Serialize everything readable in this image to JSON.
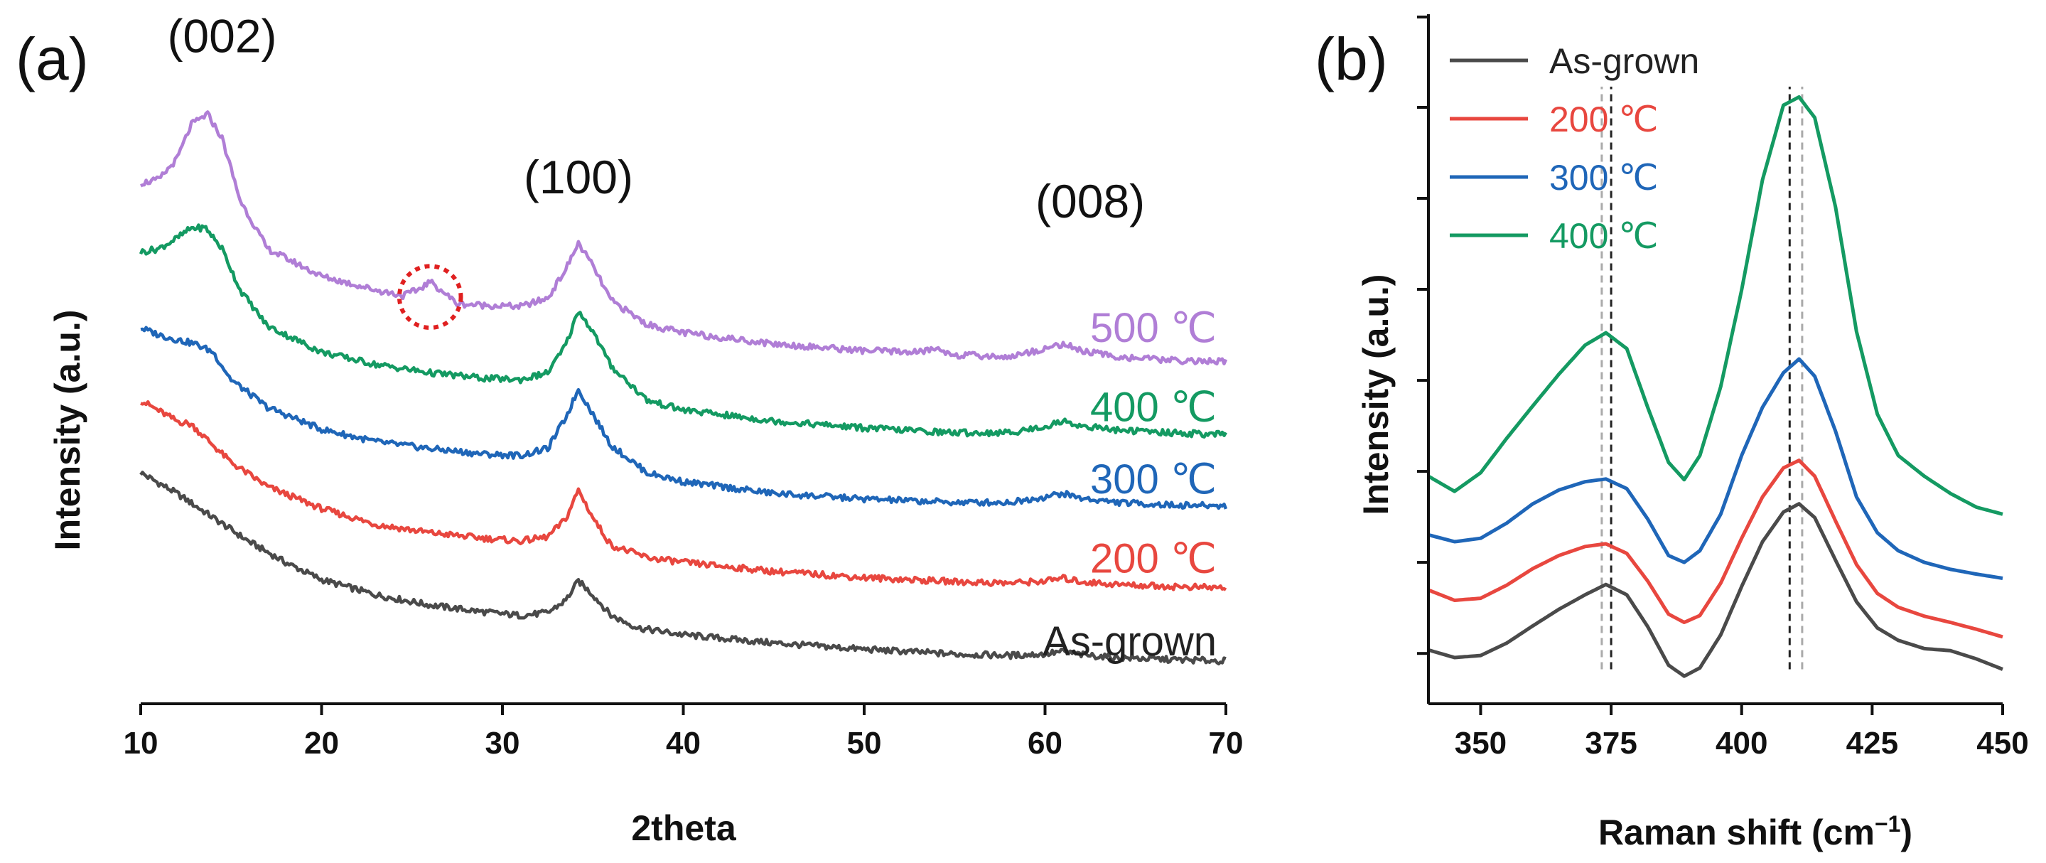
{
  "chart_data": [
    {
      "id": "a",
      "type": "line",
      "panel_label": "(a)",
      "xlabel": "2theta",
      "ylabel": "Intensity (a.u.)",
      "xlim": [
        10,
        70
      ],
      "ylim": [
        0,
        1
      ],
      "xticks": [
        10,
        20,
        30,
        40,
        50,
        60,
        70
      ],
      "peak_annotations": [
        {
          "text": "(002)",
          "x": 14.5,
          "y": 0.945
        },
        {
          "text": "(100)",
          "x": 34.2,
          "y": 0.74
        },
        {
          "text": "(008)",
          "x": 62.5,
          "y": 0.705
        }
      ],
      "circle_annotation": {
        "x": 26.0,
        "y": 0.59,
        "r_x": 1.7
      },
      "series": [
        {
          "name": "As-grown",
          "label": "As-grown",
          "color": "#4a4a4a",
          "x": [
            10,
            12,
            14,
            16,
            18,
            20,
            23,
            26,
            29,
            31,
            32.5,
            33.5,
            34.2,
            35,
            36,
            37.5,
            40,
            45,
            50,
            55,
            58,
            60,
            61,
            62,
            64,
            67,
            70
          ],
          "y": [
            0.335,
            0.305,
            0.27,
            0.235,
            0.205,
            0.18,
            0.158,
            0.143,
            0.133,
            0.128,
            0.132,
            0.15,
            0.178,
            0.158,
            0.128,
            0.11,
            0.1,
            0.088,
            0.079,
            0.072,
            0.07,
            0.072,
            0.076,
            0.071,
            0.067,
            0.064,
            0.062
          ]
        },
        {
          "name": "200 ℃",
          "label": "200 ℃",
          "color": "#e8473f",
          "x": [
            10,
            11,
            12,
            12.8,
            13.6,
            15,
            17,
            20,
            23,
            26,
            29,
            31,
            32.5,
            33.5,
            34.2,
            35,
            36,
            38,
            40,
            45,
            50,
            55,
            58,
            60,
            61,
            62,
            64,
            67,
            70
          ],
          "y": [
            0.44,
            0.425,
            0.41,
            0.405,
            0.385,
            0.35,
            0.315,
            0.283,
            0.26,
            0.248,
            0.24,
            0.236,
            0.242,
            0.268,
            0.31,
            0.27,
            0.23,
            0.212,
            0.205,
            0.192,
            0.183,
            0.177,
            0.175,
            0.178,
            0.182,
            0.177,
            0.173,
            0.17,
            0.168
          ]
        },
        {
          "name": "300 ℃",
          "label": "300 ℃",
          "color": "#1f66b8",
          "x": [
            10,
            11,
            12,
            13,
            14,
            15,
            17,
            20,
            23,
            26,
            29,
            31,
            32.5,
            33.5,
            34.2,
            35,
            36,
            38,
            40,
            45,
            50,
            55,
            58,
            60,
            61,
            62,
            64,
            67,
            70
          ],
          "y": [
            0.545,
            0.535,
            0.528,
            0.522,
            0.51,
            0.47,
            0.43,
            0.398,
            0.38,
            0.37,
            0.362,
            0.36,
            0.37,
            0.415,
            0.456,
            0.42,
            0.375,
            0.335,
            0.322,
            0.305,
            0.297,
            0.292,
            0.292,
            0.3,
            0.305,
            0.298,
            0.292,
            0.288,
            0.287
          ]
        },
        {
          "name": "400 ℃",
          "label": "400 ℃",
          "color": "#149a62",
          "x": [
            10,
            11,
            12,
            12.8,
            13.6,
            14.5,
            15.5,
            17,
            20,
            23,
            26,
            29,
            31,
            32.5,
            33.5,
            34.2,
            35,
            36,
            38,
            40,
            45,
            50,
            55,
            58,
            60,
            61,
            62,
            64,
            67,
            70
          ],
          "y": [
            0.655,
            0.66,
            0.675,
            0.69,
            0.69,
            0.66,
            0.6,
            0.548,
            0.51,
            0.492,
            0.48,
            0.472,
            0.47,
            0.48,
            0.52,
            0.57,
            0.54,
            0.49,
            0.44,
            0.426,
            0.41,
            0.4,
            0.393,
            0.393,
            0.402,
            0.41,
            0.403,
            0.397,
            0.393,
            0.39
          ]
        },
        {
          "name": "500 ℃",
          "label": "500 ℃",
          "color": "#b07ed6",
          "x": [
            10,
            11,
            12,
            12.8,
            13.7,
            14.5,
            15.5,
            17,
            20,
            23,
            24.5,
            25.3,
            26,
            26.7,
            27.5,
            29,
            31,
            32.5,
            33.5,
            34.2,
            35,
            36,
            38,
            40,
            45,
            50,
            53,
            54,
            55,
            58,
            60,
            61,
            62,
            64,
            67,
            70
          ],
          "y": [
            0.755,
            0.76,
            0.79,
            0.84,
            0.855,
            0.82,
            0.73,
            0.66,
            0.62,
            0.6,
            0.592,
            0.6,
            0.612,
            0.598,
            0.58,
            0.578,
            0.576,
            0.588,
            0.63,
            0.668,
            0.635,
            0.585,
            0.55,
            0.538,
            0.522,
            0.512,
            0.51,
            0.515,
            0.506,
            0.503,
            0.515,
            0.522,
            0.512,
            0.503,
            0.498,
            0.496
          ]
        }
      ]
    },
    {
      "id": "b",
      "type": "line",
      "panel_label": "(b)",
      "xlabel": "Raman shift (cm",
      "xlabel_sup": "−1",
      "xlabel_end": ")",
      "ylabel": "Intensity (a.u.)",
      "xlim": [
        340,
        450
      ],
      "ylim": [
        0,
        1
      ],
      "xticks": [
        350,
        375,
        400,
        425,
        450
      ],
      "yticks_unlabeled": [
        0.073,
        0.205,
        0.337,
        0.469,
        0.601,
        0.733,
        0.865,
        0.996
      ],
      "reference_lines": [
        {
          "x": 373.2,
          "color": "#aaaaaa"
        },
        {
          "x": 375.0,
          "color": "#222222"
        },
        {
          "x": 409.2,
          "color": "#222222"
        },
        {
          "x": 411.6,
          "color": "#aaaaaa"
        }
      ],
      "legend": {
        "position": "top-left",
        "entries": [
          "As-grown",
          "200 ℃",
          "300 ℃",
          "400 ℃"
        ]
      },
      "series": [
        {
          "name": "As-grown",
          "color": "#4a4a4a",
          "x": [
            340,
            345,
            350,
            355,
            360,
            365,
            370,
            374,
            378,
            382,
            386,
            389,
            392,
            396,
            400,
            404,
            408,
            411,
            414,
            418,
            422,
            426,
            430,
            435,
            440,
            445,
            450
          ],
          "y": [
            0.078,
            0.067,
            0.07,
            0.088,
            0.113,
            0.137,
            0.158,
            0.173,
            0.158,
            0.112,
            0.056,
            0.04,
            0.052,
            0.1,
            0.17,
            0.235,
            0.278,
            0.29,
            0.27,
            0.208,
            0.148,
            0.11,
            0.092,
            0.08,
            0.077,
            0.065,
            0.05
          ]
        },
        {
          "name": "200 ℃",
          "color": "#e8473f",
          "x": [
            340,
            345,
            350,
            355,
            360,
            365,
            370,
            374,
            378,
            382,
            386,
            389,
            392,
            396,
            400,
            404,
            408,
            411,
            414,
            418,
            422,
            426,
            430,
            435,
            440,
            445,
            450
          ],
          "y": [
            0.165,
            0.15,
            0.153,
            0.172,
            0.196,
            0.215,
            0.228,
            0.232,
            0.218,
            0.178,
            0.13,
            0.118,
            0.128,
            0.175,
            0.24,
            0.3,
            0.342,
            0.353,
            0.33,
            0.265,
            0.202,
            0.16,
            0.14,
            0.127,
            0.118,
            0.108,
            0.097
          ]
        },
        {
          "name": "300 ℃",
          "color": "#1f66b8",
          "x": [
            340,
            345,
            350,
            355,
            360,
            365,
            370,
            374,
            378,
            382,
            386,
            389,
            392,
            396,
            400,
            404,
            408,
            411,
            414,
            418,
            422,
            426,
            430,
            435,
            440,
            445,
            450
          ],
          "y": [
            0.245,
            0.235,
            0.24,
            0.262,
            0.29,
            0.31,
            0.322,
            0.326,
            0.312,
            0.268,
            0.215,
            0.205,
            0.222,
            0.275,
            0.36,
            0.43,
            0.48,
            0.5,
            0.475,
            0.395,
            0.3,
            0.248,
            0.222,
            0.205,
            0.195,
            0.188,
            0.182
          ]
        },
        {
          "name": "400 ℃",
          "color": "#149a62",
          "x": [
            340,
            345,
            350,
            355,
            360,
            365,
            370,
            374,
            378,
            382,
            386,
            389,
            392,
            396,
            400,
            404,
            408,
            411,
            414,
            418,
            422,
            426,
            430,
            435,
            440,
            445,
            450
          ],
          "y": [
            0.33,
            0.308,
            0.335,
            0.385,
            0.432,
            0.478,
            0.52,
            0.538,
            0.515,
            0.43,
            0.35,
            0.325,
            0.36,
            0.46,
            0.6,
            0.76,
            0.868,
            0.88,
            0.85,
            0.72,
            0.54,
            0.42,
            0.36,
            0.33,
            0.305,
            0.285,
            0.275
          ]
        }
      ]
    }
  ]
}
